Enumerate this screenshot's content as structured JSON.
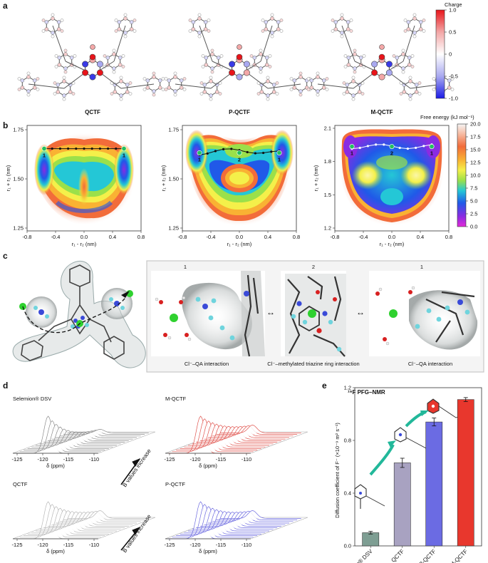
{
  "panel_labels": {
    "a": "a",
    "b": "b",
    "c": "c",
    "d": "d",
    "e": "e"
  },
  "panel_a": {
    "molecules": [
      "QCTF",
      "P-QCTF",
      "M-QCTF"
    ],
    "colorbar": {
      "title": "Charge",
      "ticks": [
        "1.0",
        "0.5",
        "0",
        "-0.5",
        "-1.0"
      ],
      "colors": [
        "#e8141a",
        "#f3a7a7",
        "#ffffff",
        "#a9a9f0",
        "#1b1be6"
      ]
    }
  },
  "panel_b": {
    "x_ticks": [
      "-0.8",
      "-0.4",
      "0.0",
      "0.4",
      "0.8"
    ],
    "xlabel": "r₁ - r₂ (nm)",
    "ylabel": "r₁ + r₂ (nm)",
    "maps": [
      {
        "name": "QCTF",
        "y_ticks": [
          "1.75",
          "1.50",
          "1.25"
        ],
        "point_labels": [
          "1",
          "1"
        ]
      },
      {
        "name": "P-QCTF",
        "y_ticks": [
          "1.75",
          "1.50",
          "1.25"
        ],
        "point_labels": [
          "1",
          "2",
          "1"
        ]
      },
      {
        "name": "M-QCTF",
        "y_ticks": [
          "2.1",
          "1.8",
          "1.5",
          "1.2"
        ],
        "point_labels": [
          "1",
          "2",
          "1"
        ]
      }
    ],
    "colorbar": {
      "title": "Free energy (kJ mol⁻¹)",
      "ticks": [
        "20.0",
        "17.5",
        "15.0",
        "12.5",
        "10.0",
        "7.5",
        "5.0",
        "2.5",
        "0.0"
      ]
    }
  },
  "panel_c": {
    "states": [
      "1",
      "2",
      "1"
    ],
    "captions": [
      "Cl⁻–QA interaction",
      "Cl⁻–methylated triazine ring interaction",
      "Cl⁻–QA interaction"
    ]
  },
  "panel_d": {
    "spectra": [
      {
        "name": "Selemion® DSV",
        "color": "#8c8c8c"
      },
      {
        "name": "M-QCTF",
        "color": "#e0554f"
      },
      {
        "name": "QCTF",
        "color": "#b8b8b8"
      },
      {
        "name": "P-QCTF",
        "color": "#6d6be0"
      }
    ],
    "x_ticks": [
      "-125",
      "-120",
      "-115",
      "-110"
    ],
    "xlabel": "δ (ppm)",
    "arrow_label": "B values increase"
  },
  "panel_e": {
    "title": "¹⁹F PFG–NMR",
    "ylabel": "Diffusion coefficient of F⁻ (×10⁻⁹ m² s⁻¹)",
    "chart_data": {
      "type": "bar",
      "categories": [
        "Selemion® DSV",
        "QCTF",
        "P-QCTF",
        "M-QCTF"
      ],
      "values": [
        0.1,
        0.63,
        0.94,
        1.11
      ],
      "errors": [
        0.01,
        0.035,
        0.03,
        0.015
      ],
      "colors": [
        "#7e9e93",
        "#a8a2c1",
        "#6b6be3",
        "#e8372d"
      ],
      "ylim": [
        0,
        1.2
      ],
      "y_ticks": [
        "0.0",
        "0.4",
        "0.8",
        "1.2"
      ]
    }
  }
}
